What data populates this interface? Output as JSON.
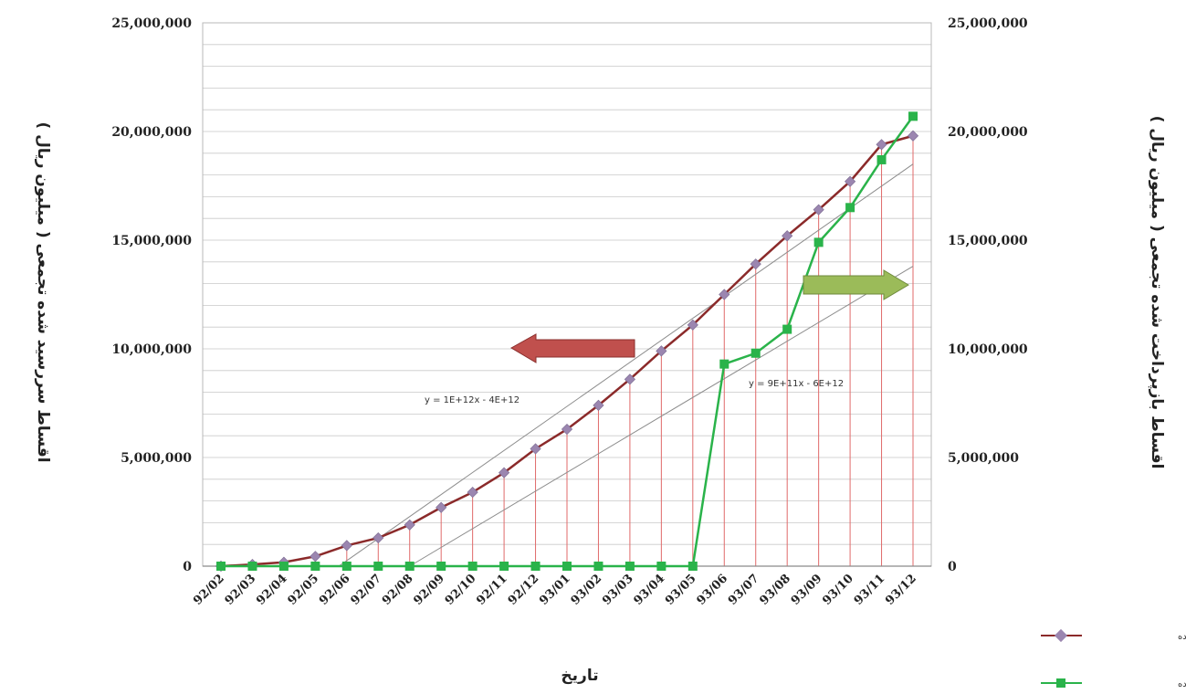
{
  "chart_data": {
    "type": "line",
    "title": "",
    "xlabel": "تاریخ",
    "ylabel_left": "اقساط سررسید شده تجمعی ( میلیون ریال )",
    "ylabel_right": "اقساط بازپرداخت شده تجمعی ( میلیون ریال )",
    "ylim": [
      0,
      25000000
    ],
    "yticks": [
      "0",
      "5,000,000",
      "10,000,000",
      "15,000,000",
      "20,000,000",
      "25,000,000"
    ],
    "ytick_values": [
      0,
      5000000,
      10000000,
      15000000,
      20000000,
      25000000
    ],
    "grid": true,
    "legend_position": "bottom-right",
    "categories": [
      "92/02",
      "92/03",
      "92/04",
      "92/05",
      "92/06",
      "92/07",
      "92/08",
      "92/09",
      "92/10",
      "92/11",
      "92/12",
      "93/01",
      "93/02",
      "93/03",
      "93/04",
      "93/05",
      "93/06",
      "93/07",
      "93/08",
      "93/09",
      "93/10",
      "93/11",
      "93/12"
    ],
    "series": [
      {
        "name": "اقساط سررسید شده",
        "color": "#8b2a2a",
        "marker_color": "#9b86b0",
        "marker": "diamond",
        "values": [
          0,
          80000,
          180000,
          450000,
          950000,
          1300000,
          1900000,
          2700000,
          3400000,
          4300000,
          5400000,
          6300000,
          7400000,
          8600000,
          9900000,
          11100000,
          12500000,
          13900000,
          15200000,
          16400000,
          17700000,
          19400000,
          19800000
        ]
      },
      {
        "name": "اقساط بازپرداخت شده",
        "color": "#2ab34a",
        "marker_color": "#2ab34a",
        "marker": "square",
        "values": [
          0,
          0,
          0,
          0,
          0,
          0,
          0,
          0,
          0,
          0,
          0,
          0,
          0,
          0,
          0,
          0,
          9300000,
          9800000,
          10900000,
          14900000,
          16500000,
          18700000,
          20700000
        ]
      }
    ],
    "trendlines": [
      {
        "label": "y = 1E+12x - 4E+12",
        "from": [
          0,
          -3800000
        ],
        "to": [
          22,
          18500000
        ]
      },
      {
        "label": "y = 9E+11x - 6E+12",
        "from": [
          6,
          0
        ],
        "to": [
          22,
          13800000
        ]
      }
    ],
    "arrows": [
      {
        "direction": "left",
        "color": "#c0504d",
        "meaning": "left-axis"
      },
      {
        "direction": "right",
        "color": "#9bbb59",
        "meaning": "right-axis"
      }
    ]
  }
}
